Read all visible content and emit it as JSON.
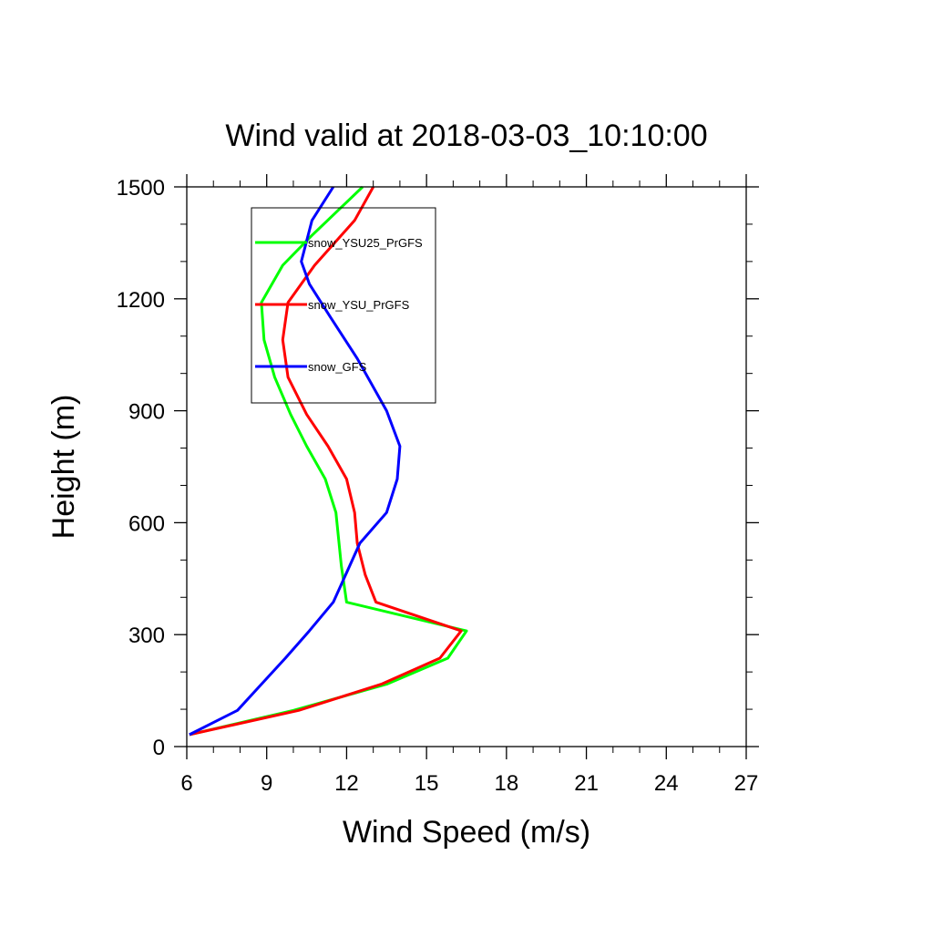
{
  "chart_data": {
    "type": "line",
    "title": "Wind valid at 2018-03-03_10:10:00",
    "xlabel": "Wind Speed (m/s)",
    "ylabel": "Height (m)",
    "xlim": [
      6,
      27
    ],
    "ylim": [
      0,
      1500
    ],
    "xticks": [
      6,
      9,
      12,
      15,
      18,
      21,
      24,
      27
    ],
    "yticks": [
      0,
      300,
      600,
      900,
      1200,
      1500
    ],
    "x_minor_step": 1,
    "y_minor_step": 100,
    "grid": false,
    "legend_position": "top-left (boxed, inside plot)",
    "series": [
      {
        "name": "snow_YSU25_PrGFS",
        "color": "#00ff00",
        "x": [
          6.1,
          10.0,
          13.5,
          15.8,
          16.5,
          12.0,
          11.8,
          11.6,
          11.2,
          10.5,
          9.9,
          9.3,
          8.9,
          8.8,
          9.6,
          10.7,
          12.6
        ],
        "y": [
          32,
          97,
          167,
          237,
          310,
          387,
          485,
          627,
          717,
          805,
          890,
          990,
          1090,
          1190,
          1290,
          1370,
          1500
        ]
      },
      {
        "name": "snow_YSU_PrGFS",
        "color": "#ff0000",
        "x": [
          6.1,
          10.2,
          13.3,
          15.5,
          16.3,
          13.1,
          12.7,
          12.4,
          12.3,
          12.0,
          11.3,
          10.5,
          9.8,
          9.6,
          9.8,
          10.8,
          12.3,
          13.0
        ],
        "y": [
          32,
          97,
          167,
          237,
          310,
          387,
          460,
          545,
          627,
          717,
          805,
          890,
          990,
          1090,
          1190,
          1290,
          1410,
          1500
        ]
      },
      {
        "name": "snow_GFS",
        "color": "#0000ff",
        "x": [
          6.1,
          7.9,
          8.8,
          9.7,
          10.6,
          11.5,
          12.5,
          13.5,
          13.9,
          14.0,
          13.5,
          12.4,
          11.4,
          10.6,
          10.3,
          10.7,
          11.5
        ],
        "y": [
          32,
          97,
          167,
          237,
          310,
          387,
          545,
          627,
          717,
          805,
          900,
          1040,
          1150,
          1240,
          1300,
          1410,
          1500
        ]
      }
    ]
  }
}
